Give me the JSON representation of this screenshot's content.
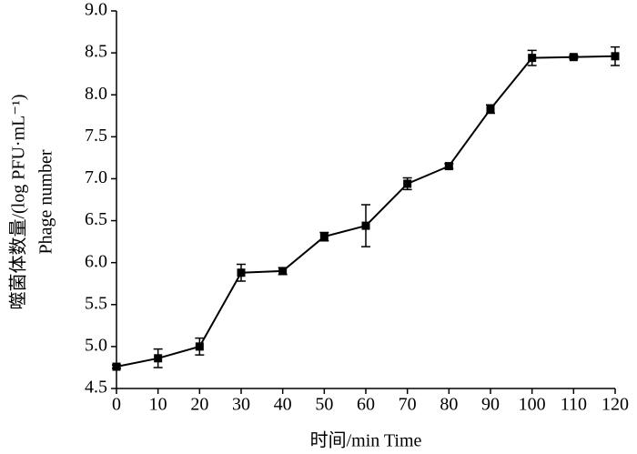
{
  "chart_data": {
    "type": "line",
    "x_label": "时间/min  Time",
    "y_label": [
      "噬菌体数量/(log PFU·mL⁻¹)",
      "Phage number"
    ],
    "x": [
      0,
      10,
      20,
      30,
      40,
      50,
      60,
      70,
      80,
      90,
      100,
      110,
      120
    ],
    "series": [
      {
        "color": "#000000",
        "values": [
          4.76,
          4.86,
          5.0,
          5.88,
          5.9,
          6.31,
          6.44,
          6.94,
          7.15,
          7.83,
          8.44,
          8.45,
          8.46
        ],
        "errors": [
          0.02,
          0.11,
          0.1,
          0.1,
          0.04,
          0.05,
          0.25,
          0.07,
          0.03,
          0.05,
          0.09,
          0.02,
          0.11
        ]
      }
    ],
    "xlim": [
      0,
      120
    ],
    "xticks": [
      0,
      10,
      20,
      30,
      40,
      50,
      60,
      70,
      80,
      90,
      100,
      110,
      120
    ],
    "ylim": [
      4.5,
      9.0
    ],
    "yticks": [
      4.5,
      {
        "value": 5.0,
        "label": "5.0"
      },
      5.5,
      {
        "value": 6.0,
        "label": "6.0"
      },
      6.5,
      {
        "value": 7.0,
        "label": "7.0"
      },
      7.5,
      {
        "value": 8.0,
        "label": "8.0"
      },
      8.5,
      {
        "value": 9.0,
        "label": "9.0"
      }
    ],
    "grid": false
  }
}
